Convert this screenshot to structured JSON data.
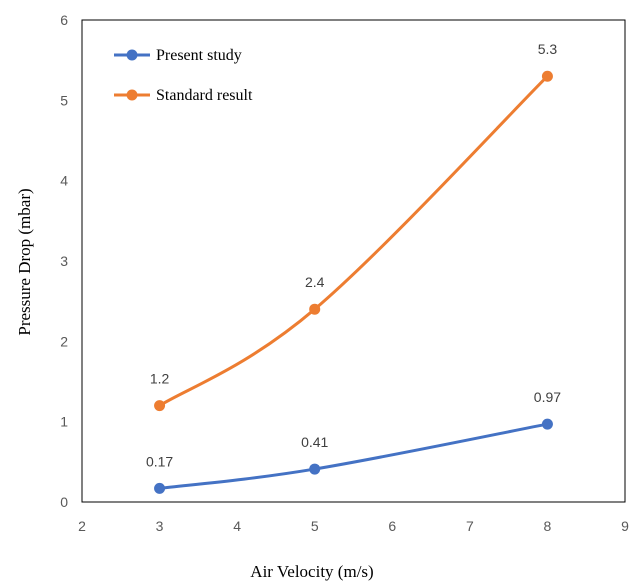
{
  "chart_data": {
    "type": "line",
    "xlabel": "Air Velocity (m/s)",
    "ylabel": "Pressure Drop (mbar)",
    "xlim": [
      2,
      9
    ],
    "ylim": [
      0,
      6
    ],
    "xticks": [
      "2",
      "3",
      "4",
      "5",
      "6",
      "7",
      "8",
      "9"
    ],
    "yticks": [
      "0",
      "1",
      "2",
      "3",
      "4",
      "5",
      "6"
    ],
    "grid": false,
    "legend_position": "top-left",
    "series": [
      {
        "name": "Present study",
        "color": "#4472C4",
        "x": [
          3,
          5,
          8
        ],
        "values": [
          0.17,
          0.41,
          0.97
        ],
        "labels": [
          "0.17",
          "0.41",
          "0.97"
        ]
      },
      {
        "name": "Standard result",
        "color": "#ED7D31",
        "x": [
          3,
          5,
          8
        ],
        "values": [
          1.2,
          2.4,
          5.3
        ],
        "labels": [
          "1.2",
          "2.4",
          "5.3"
        ]
      }
    ]
  }
}
